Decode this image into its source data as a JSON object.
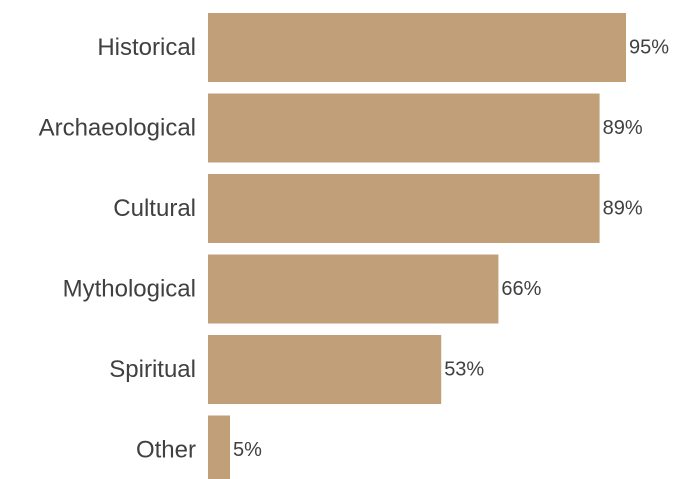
{
  "chart_data": {
    "type": "bar",
    "orientation": "horizontal",
    "categories": [
      "Historical",
      "Archaeological",
      "Cultural",
      "Mythological",
      "Spiritual",
      "Other"
    ],
    "values": [
      95,
      89,
      89,
      66,
      53,
      5
    ],
    "value_labels": [
      "95%",
      "89%",
      "89%",
      "66%",
      "53%",
      "5%"
    ],
    "xlim": [
      0,
      100
    ],
    "grid": false,
    "legend": "none",
    "bar_color": "#c19f78"
  }
}
